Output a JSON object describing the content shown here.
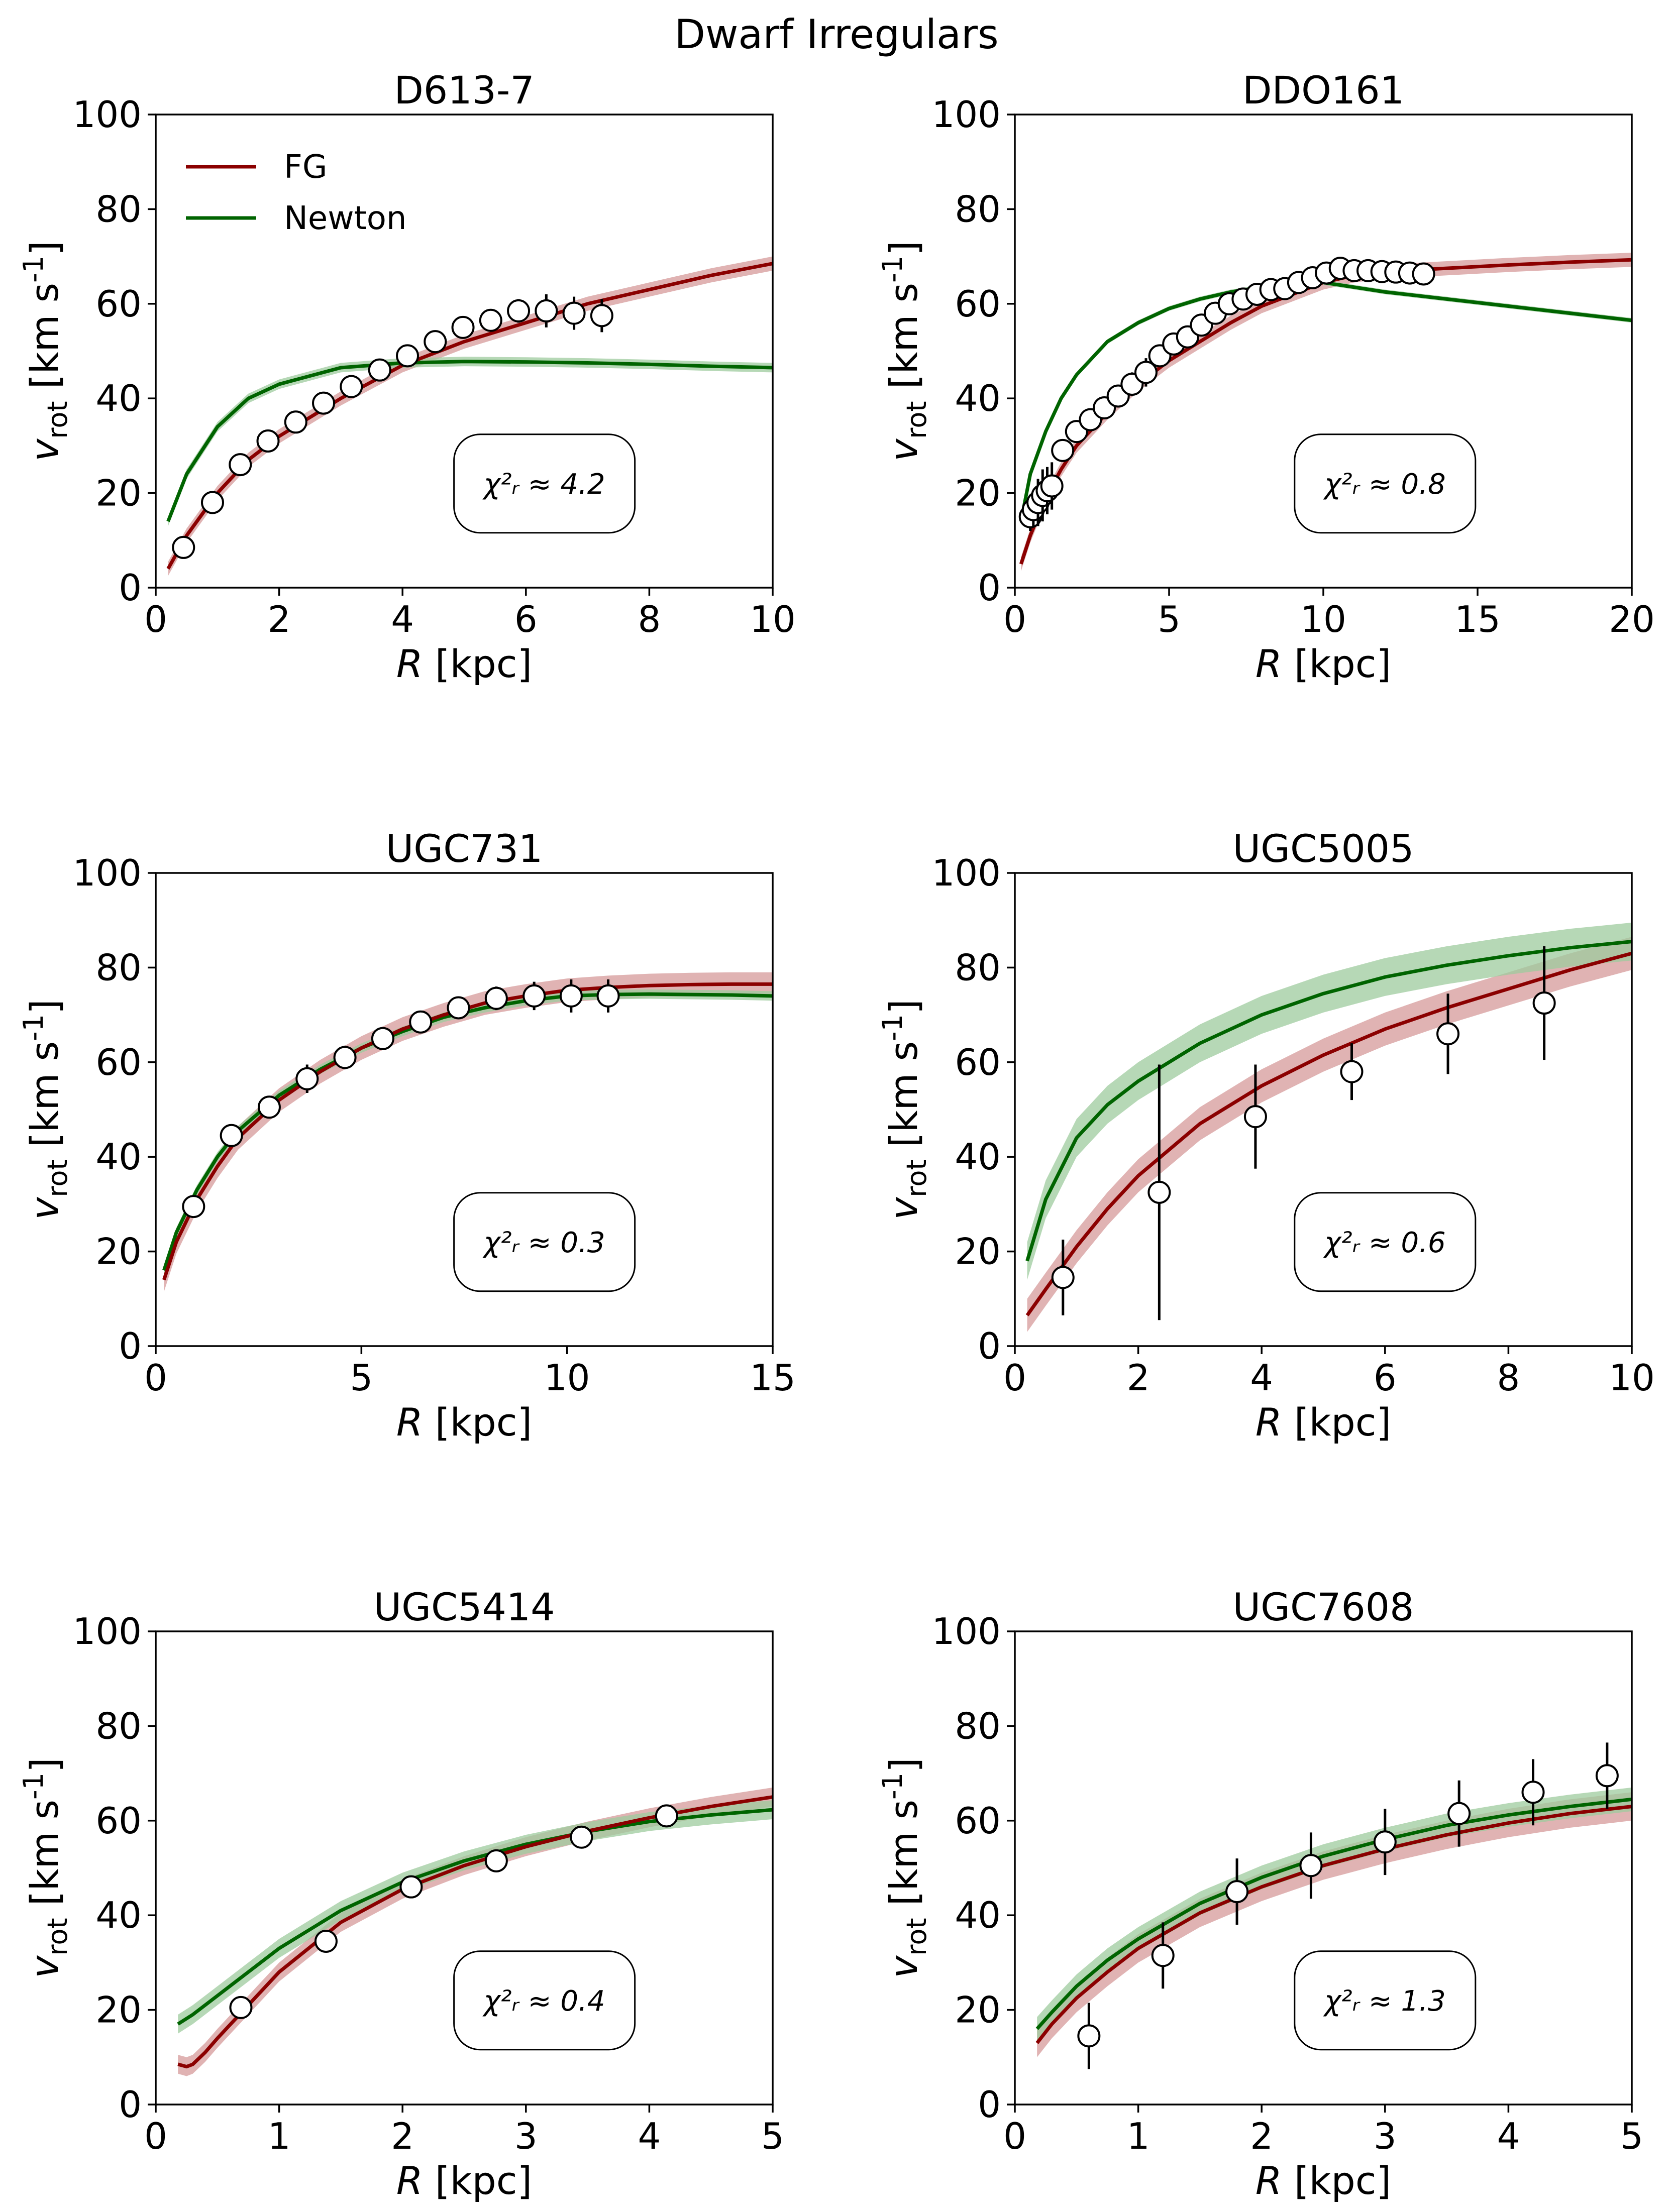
{
  "figure_title": "Dwarf Irregulars",
  "colors": {
    "fg": "#8b0000",
    "fg_band": "#d59a9a",
    "newton": "#006400",
    "newton_band": "#9dcb9d",
    "point_fill": "#ffffff"
  },
  "chart_data": [
    {
      "type": "line",
      "title": "D613-7",
      "xlabel": "R [kpc]",
      "ylabel": "v_rot [km s^-1]",
      "xlim": [
        0,
        10
      ],
      "ylim": [
        0,
        100
      ],
      "xticks": [
        "0",
        "2",
        "4",
        "6",
        "8",
        "10"
      ],
      "yticks": [
        "0",
        "20",
        "40",
        "60",
        "80",
        "100"
      ],
      "chi2_label": "χ²ᵣ ≈ 4.2",
      "legend": {
        "position": "top-left",
        "entries": [
          "FG",
          "Newton"
        ]
      },
      "series": [
        {
          "name": "FG",
          "x": [
            0.2,
            0.5,
            1,
            1.5,
            2,
            3,
            4,
            5,
            6,
            7,
            8,
            9,
            10
          ],
          "values": [
            4,
            11,
            20,
            27,
            32,
            40,
            47,
            52,
            56,
            60,
            63,
            66,
            68.5
          ],
          "band": 1.5
        },
        {
          "name": "Newton",
          "x": [
            0.2,
            0.5,
            1,
            1.5,
            2,
            3,
            4,
            5,
            6,
            7,
            8,
            9,
            10
          ],
          "values": [
            14,
            24,
            34,
            40,
            43,
            46.5,
            47.5,
            47.8,
            47.7,
            47.5,
            47.2,
            46.8,
            46.5
          ],
          "band": 1.0
        }
      ],
      "points": {
        "x": [
          0.45,
          0.92,
          1.37,
          1.82,
          2.27,
          2.72,
          3.17,
          3.63,
          4.08,
          4.53,
          4.98,
          5.43,
          5.88,
          6.33,
          6.78,
          7.23
        ],
        "values": [
          8.5,
          18,
          26,
          31,
          35,
          39,
          42.5,
          46,
          49,
          52,
          55,
          56.5,
          58.5,
          58.5,
          58,
          57.5
        ],
        "err": [
          0.5,
          0.8,
          1,
          1,
          1,
          1,
          1,
          1,
          1.2,
          1.5,
          1.5,
          2,
          2.5,
          3.5,
          3.5,
          3.5
        ]
      }
    },
    {
      "type": "line",
      "title": "DDO161",
      "xlabel": "R [kpc]",
      "ylabel": "v_rot [km s^-1]",
      "xlim": [
        0,
        20
      ],
      "ylim": [
        0,
        100
      ],
      "xticks": [
        "0",
        "5",
        "10",
        "15",
        "20"
      ],
      "yticks": [
        "0",
        "20",
        "40",
        "60",
        "80",
        "100"
      ],
      "chi2_label": "χ²ᵣ ≈ 0.8",
      "series": [
        {
          "name": "FG",
          "x": [
            0.2,
            0.5,
            1,
            1.5,
            2,
            3,
            4,
            5,
            6,
            7,
            8,
            9,
            10,
            11,
            12,
            14,
            16,
            18,
            20
          ],
          "values": [
            5,
            11,
            19,
            25,
            30,
            37,
            43,
            48,
            52,
            56,
            59.5,
            62,
            64.5,
            66,
            66.8,
            67.5,
            68.2,
            68.8,
            69.3
          ],
          "band": 1.5
        },
        {
          "name": "Newton",
          "x": [
            0.2,
            0.5,
            1,
            1.5,
            2,
            3,
            4,
            5,
            6,
            7,
            8,
            9,
            10,
            11,
            12,
            14,
            16,
            18,
            20
          ],
          "values": [
            14,
            24,
            33,
            40,
            45,
            52,
            56,
            59,
            61,
            62.5,
            63.5,
            64,
            64.5,
            63.5,
            62.5,
            61,
            59.5,
            58,
            56.5
          ],
          "band": 0.5
        }
      ],
      "points": {
        "x": [
          0.5,
          0.6,
          0.75,
          0.9,
          1.05,
          1.2,
          1.55,
          2.0,
          2.45,
          2.9,
          3.35,
          3.8,
          4.25,
          4.7,
          5.15,
          5.6,
          6.05,
          6.5,
          6.95,
          7.4,
          7.85,
          8.3,
          8.75,
          9.2,
          9.65,
          10.1,
          10.55,
          11.0,
          11.45,
          11.9,
          12.35,
          12.8,
          13.25
        ],
        "values": [
          15,
          16.5,
          18,
          19.5,
          20.5,
          21.5,
          29,
          33,
          35.5,
          38,
          40.5,
          43,
          45.5,
          49,
          51.5,
          53,
          55.5,
          58,
          60,
          61,
          62,
          63,
          63.2,
          64.5,
          65.5,
          66.5,
          67.5,
          67,
          67,
          66.8,
          66.7,
          66.5,
          66.3
        ],
        "err": [
          3,
          3.5,
          5,
          5.5,
          5,
          5,
          1.5,
          1.5,
          1.5,
          2,
          2,
          2.5,
          3,
          1.5,
          1,
          1,
          1,
          1,
          1,
          1,
          1,
          1,
          1,
          1,
          1,
          1,
          1.5,
          1,
          1,
          1,
          1,
          1,
          1
        ]
      }
    },
    {
      "type": "line",
      "title": "UGC731",
      "xlabel": "R [kpc]",
      "ylabel": "v_rot [km s^-1]",
      "xlim": [
        0,
        15
      ],
      "ylim": [
        0,
        100
      ],
      "xticks": [
        "0",
        "5",
        "10",
        "15"
      ],
      "yticks": [
        "0",
        "20",
        "40",
        "60",
        "80",
        "100"
      ],
      "chi2_label": "χ²ᵣ ≈ 0.3",
      "series": [
        {
          "name": "FG",
          "x": [
            0.2,
            0.5,
            1,
            1.5,
            2,
            3,
            4,
            5,
            6,
            7,
            8,
            9,
            10,
            11,
            12,
            13,
            14,
            15
          ],
          "values": [
            14,
            22,
            31,
            38,
            44,
            52,
            58,
            63,
            67,
            70,
            72.5,
            74,
            75.2,
            75.8,
            76.2,
            76.4,
            76.5,
            76.5
          ],
          "band": 2.5
        },
        {
          "name": "Newton",
          "x": [
            0.2,
            0.5,
            1,
            1.5,
            2,
            3,
            4,
            5,
            6,
            7,
            8,
            9,
            10,
            11,
            12,
            13,
            14,
            15
          ],
          "values": [
            16,
            24,
            33,
            40,
            45.5,
            53,
            58.5,
            63,
            66.5,
            69.5,
            71.5,
            73,
            74,
            74.3,
            74.4,
            74.3,
            74.2,
            74
          ],
          "band": 1.0
        }
      ],
      "points": {
        "x": [
          0.92,
          1.84,
          2.76,
          3.68,
          4.6,
          5.52,
          6.44,
          7.36,
          8.28,
          9.2,
          10.1,
          11.0
        ],
        "values": [
          29.5,
          44.5,
          50.5,
          56.5,
          61,
          65,
          68.5,
          71.5,
          73.5,
          74,
          74,
          74
        ],
        "err": [
          1,
          1.5,
          2,
          3,
          2.5,
          2,
          2,
          2,
          2.5,
          3,
          3.5,
          3.5
        ]
      }
    },
    {
      "type": "line",
      "title": "UGC5005",
      "xlabel": "R [kpc]",
      "ylabel": "v_rot [km s^-1]",
      "xlim": [
        0,
        10
      ],
      "ylim": [
        0,
        100
      ],
      "xticks": [
        "0",
        "2",
        "4",
        "6",
        "8",
        "10"
      ],
      "yticks": [
        "0",
        "20",
        "40",
        "60",
        "80",
        "100"
      ],
      "chi2_label": "χ²ᵣ ≈ 0.6",
      "series": [
        {
          "name": "FG",
          "x": [
            0.2,
            0.5,
            1,
            1.5,
            2,
            3,
            4,
            5,
            6,
            7,
            8,
            9,
            10
          ],
          "values": [
            6.5,
            12,
            21,
            29,
            36,
            47,
            55,
            61.5,
            67,
            71.5,
            75.5,
            79.5,
            83
          ],
          "band": 3.5
        },
        {
          "name": "Newton",
          "x": [
            0.2,
            0.5,
            1,
            1.5,
            2,
            3,
            4,
            5,
            6,
            7,
            8,
            9,
            10
          ],
          "values": [
            18,
            31,
            44,
            51,
            56,
            64,
            70,
            74.5,
            78,
            80.5,
            82.5,
            84.2,
            85.5
          ],
          "band": 4.0
        }
      ],
      "points": {
        "x": [
          0.78,
          2.34,
          3.9,
          5.46,
          7.02,
          8.58
        ],
        "values": [
          14.5,
          32.5,
          48.5,
          58,
          66,
          72.5
        ],
        "err": [
          8,
          27,
          11,
          6,
          8.5,
          12
        ]
      }
    },
    {
      "type": "line",
      "title": "UGC5414",
      "xlabel": "R [kpc]",
      "ylabel": "v_rot [km s^-1]",
      "xlim": [
        0,
        5
      ],
      "ylim": [
        0,
        100
      ],
      "xticks": [
        "0",
        "1",
        "2",
        "3",
        "4",
        "5"
      ],
      "yticks": [
        "0",
        "20",
        "40",
        "60",
        "80",
        "100"
      ],
      "chi2_label": "χ²ᵣ ≈ 0.4",
      "series": [
        {
          "name": "FG",
          "x": [
            0.18,
            0.25,
            0.3,
            0.4,
            0.5,
            0.75,
            1,
            1.5,
            2,
            2.5,
            3,
            3.5,
            4,
            4.5,
            5
          ],
          "values": [
            8.5,
            8,
            8.5,
            11,
            14,
            21,
            28,
            38.5,
            45.5,
            50.5,
            54.5,
            57.8,
            60.6,
            63,
            65
          ],
          "band": 2.0
        },
        {
          "name": "Newton",
          "x": [
            0.18,
            0.3,
            0.5,
            0.75,
            1,
            1.5,
            2,
            2.5,
            3,
            3.5,
            4,
            4.5,
            5
          ],
          "values": [
            17,
            19,
            23,
            28,
            33,
            41,
            47,
            51.5,
            55,
            57.7,
            59.8,
            61.2,
            62.3
          ],
          "band": 2.0
        }
      ],
      "points": {
        "x": [
          0.69,
          1.38,
          2.07,
          2.76,
          3.45,
          4.14
        ],
        "values": [
          20.5,
          34.5,
          46,
          51.5,
          56.5,
          61
        ],
        "err": [
          1,
          1,
          1,
          1,
          1,
          1
        ]
      }
    },
    {
      "type": "line",
      "title": "UGC7608",
      "xlabel": "R [kpc]",
      "ylabel": "v_rot [km s^-1]",
      "xlim": [
        0,
        5
      ],
      "ylim": [
        0,
        100
      ],
      "xticks": [
        "0",
        "1",
        "2",
        "3",
        "4",
        "5"
      ],
      "yticks": [
        "0",
        "20",
        "40",
        "60",
        "80",
        "100"
      ],
      "chi2_label": "χ²ᵣ ≈ 1.3",
      "series": [
        {
          "name": "FG",
          "x": [
            0.18,
            0.3,
            0.5,
            0.75,
            1,
            1.5,
            2,
            2.5,
            3,
            3.5,
            4,
            4.5,
            5
          ],
          "values": [
            13,
            17,
            22.5,
            28,
            33,
            40.5,
            46,
            50.5,
            54,
            57,
            59.5,
            61.5,
            63
          ],
          "band": 3.0
        },
        {
          "name": "Newton",
          "x": [
            0.18,
            0.3,
            0.5,
            0.75,
            1,
            1.5,
            2,
            2.5,
            3,
            3.5,
            4,
            4.5,
            5
          ],
          "values": [
            16,
            19.5,
            25,
            30.5,
            35,
            42.5,
            48,
            52.5,
            56,
            59,
            61.2,
            63,
            64.5
          ],
          "band": 2.5
        }
      ],
      "points": {
        "x": [
          0.6,
          1.2,
          1.8,
          2.4,
          3.0,
          3.6,
          4.2,
          4.8
        ],
        "values": [
          14.5,
          31.5,
          45,
          50.5,
          55.5,
          61.5,
          66,
          69.5
        ],
        "err": [
          7,
          7,
          7,
          7,
          7,
          7,
          7,
          7
        ]
      }
    }
  ]
}
